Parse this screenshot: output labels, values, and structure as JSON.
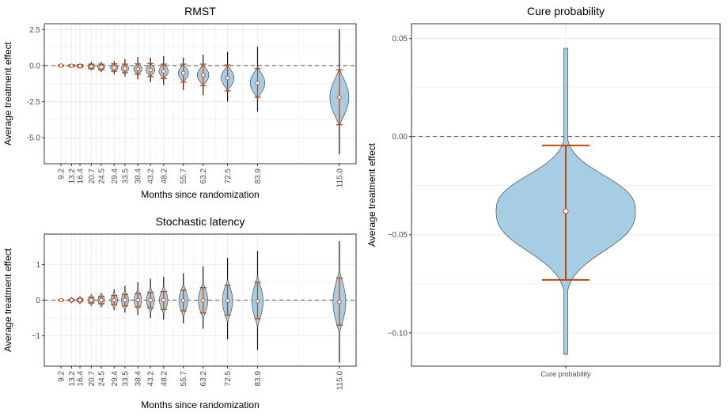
{
  "colors": {
    "violin_fill": "#a6cde4",
    "violin_stroke": "#333333",
    "interval": "#c0450b",
    "reference_line": "#555555",
    "grid": "#ebebeb",
    "panel_border": "#333333"
  },
  "chart_data": [
    {
      "id": "rmst",
      "type": "violin",
      "title": "RMST",
      "xlabel": "Months since randomization",
      "ylabel": "Average treatment effect",
      "x_tick_labels": [
        "9.2",
        "13.2",
        "16.4",
        "20.7",
        "24.5",
        "29.4",
        "33.5",
        "38.4",
        "43.2",
        "48.2",
        "55.7",
        "63.2",
        "72.5",
        "83.9",
        "115.0"
      ],
      "x": [
        9.2,
        13.2,
        16.4,
        20.7,
        24.5,
        29.4,
        33.5,
        38.4,
        43.2,
        48.2,
        55.7,
        63.2,
        72.5,
        83.9,
        115.0
      ],
      "y_ticks": [
        2.5,
        0.0,
        -2.5,
        -5.0
      ],
      "y_tick_labels": [
        "2.5",
        "0.0",
        "-2.5",
        "-5.0"
      ],
      "ylim": [
        -6.8,
        2.9
      ],
      "reference_line": 0,
      "grid": true,
      "median": [
        0.0,
        -0.01,
        -0.03,
        -0.06,
        -0.1,
        -0.14,
        -0.2,
        -0.24,
        -0.31,
        -0.4,
        -0.52,
        -0.66,
        -0.86,
        -1.2,
        -2.2
      ],
      "lower": [
        -0.04,
        -0.08,
        -0.12,
        -0.22,
        -0.3,
        -0.4,
        -0.5,
        -0.6,
        -0.76,
        -0.9,
        -1.14,
        -1.4,
        -1.76,
        -2.2,
        -4.1
      ],
      "upper": [
        0.04,
        0.06,
        0.06,
        0.1,
        0.1,
        0.12,
        0.1,
        0.12,
        0.14,
        0.1,
        0.1,
        0.1,
        0.04,
        -0.2,
        -0.3
      ],
      "min": [
        -0.07,
        -0.15,
        -0.2,
        -0.32,
        -0.45,
        -0.6,
        -0.75,
        -0.95,
        -1.15,
        -1.35,
        -1.7,
        -2.05,
        -2.5,
        -3.2,
        -6.15
      ],
      "max": [
        0.07,
        0.12,
        0.15,
        0.25,
        0.25,
        0.3,
        0.45,
        0.6,
        0.55,
        0.65,
        0.55,
        0.75,
        0.95,
        1.3,
        2.5
      ],
      "spread": [
        0.06,
        0.1,
        0.14,
        0.19,
        0.24,
        0.28,
        0.32,
        0.37,
        0.44,
        0.5,
        0.6,
        0.72,
        0.86,
        1.05,
        1.9
      ]
    },
    {
      "id": "latency",
      "type": "violin",
      "title": "Stochastic latency",
      "xlabel": "Months since randomization",
      "ylabel": "Average treatment effect",
      "x_tick_labels": [
        "9.2",
        "13.2",
        "16.4",
        "20.7",
        "24.5",
        "29.4",
        "33.5",
        "38.4",
        "43.2",
        "48.2",
        "55.7",
        "63.2",
        "72.5",
        "83.9",
        "115.0"
      ],
      "x": [
        9.2,
        13.2,
        16.4,
        20.7,
        24.5,
        29.4,
        33.5,
        38.4,
        43.2,
        48.2,
        55.7,
        63.2,
        72.5,
        83.9,
        115.0
      ],
      "y_ticks": [
        1,
        0,
        -1
      ],
      "y_tick_labels": [
        "1",
        "0",
        "−1"
      ],
      "ylim": [
        -1.85,
        1.85
      ],
      "reference_line": 0,
      "grid": true,
      "median": [
        0.0,
        0.0,
        0.0,
        0.0,
        0.0,
        0.0,
        0.0,
        0.0,
        0.0,
        0.0,
        -0.01,
        -0.01,
        -0.02,
        -0.03,
        -0.05
      ],
      "lower": [
        -0.01,
        -0.02,
        -0.04,
        -0.08,
        -0.1,
        -0.13,
        -0.16,
        -0.19,
        -0.22,
        -0.26,
        -0.3,
        -0.36,
        -0.42,
        -0.52,
        -0.7
      ],
      "upper": [
        0.01,
        0.02,
        0.04,
        0.08,
        0.1,
        0.13,
        0.16,
        0.18,
        0.22,
        0.24,
        0.28,
        0.35,
        0.42,
        0.5,
        0.62
      ],
      "min": [
        -0.02,
        -0.04,
        -0.08,
        -0.15,
        -0.2,
        -0.28,
        -0.35,
        -0.42,
        -0.5,
        -0.55,
        -0.65,
        -0.8,
        -1.1,
        -1.4,
        -1.75
      ],
      "max": [
        0.02,
        0.04,
        0.08,
        0.15,
        0.2,
        0.3,
        0.4,
        0.5,
        0.6,
        0.65,
        0.75,
        0.95,
        1.18,
        1.38,
        1.65
      ],
      "spread": [
        0.04,
        0.07,
        0.1,
        0.15,
        0.18,
        0.22,
        0.26,
        0.3,
        0.34,
        0.38,
        0.44,
        0.5,
        0.58,
        0.68,
        0.85
      ]
    },
    {
      "id": "cure",
      "type": "violin",
      "title": "Cure probability",
      "xlabel": "",
      "ylabel": "Average treatment effect",
      "x_tick_labels": [
        "Cure probability"
      ],
      "y_ticks": [
        0.05,
        0.0,
        -0.05,
        -0.1
      ],
      "y_tick_labels": [
        "0.05",
        "0.00",
        "−0.05",
        "−0.10"
      ],
      "ylim": [
        -0.117,
        0.0575
      ],
      "reference_line": 0,
      "grid": true,
      "median": -0.038,
      "lower": -0.073,
      "upper": -0.0045,
      "min": -0.111,
      "max": 0.045
    }
  ]
}
